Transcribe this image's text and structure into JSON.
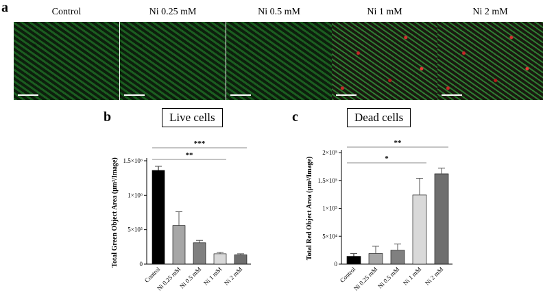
{
  "figure": {
    "panel_a": "a",
    "panel_b": "b",
    "panel_c": "c",
    "image_labels": [
      "Control",
      "Ni 0.25 mM",
      "Ni 0.5 mM",
      "Ni 1 mM",
      "Ni 2 mM"
    ]
  },
  "chart_data": [
    {
      "type": "bar",
      "title": "Live cells",
      "xlabel": "",
      "ylabel": "Total Green Object Area (μm²/Image)",
      "categories": [
        "Control",
        "Ni 0.25 mM",
        "Ni 0.5 mM",
        "Ni 1 mM",
        "Ni 2 mM"
      ],
      "values": [
        1360000,
        560000,
        310000,
        150000,
        135000
      ],
      "errors": [
        60000,
        200000,
        35000,
        20000,
        15000
      ],
      "colors": [
        "#000000",
        "#a6a6a6",
        "#808080",
        "#d9d9d9",
        "#6e6e6e"
      ],
      "ylim": [
        0,
        1500000
      ],
      "yticks": [
        0,
        500000,
        1000000,
        1500000
      ],
      "ytick_labels": [
        "0",
        "5×10⁵",
        "1×10⁶",
        "1.5×10⁶"
      ],
      "significance": [
        {
          "from": 0,
          "to": 4,
          "label": "***"
        },
        {
          "from": 0,
          "to": 3,
          "label": "**"
        }
      ],
      "grid": false
    },
    {
      "type": "bar",
      "title": "Dead cells",
      "xlabel": "",
      "ylabel": "Total Red Object Area (μm²/Image)",
      "categories": [
        "Control",
        "Ni 0.25 mM",
        "Ni 0.5 mM",
        "Ni 1 mM",
        "Ni 2 mM"
      ],
      "values": [
        14000,
        19000,
        25000,
        124000,
        162000
      ],
      "errors": [
        5000,
        13000,
        11000,
        30000,
        10000
      ],
      "colors": [
        "#000000",
        "#a6a6a6",
        "#808080",
        "#d9d9d9",
        "#6e6e6e"
      ],
      "ylim": [
        0,
        200000
      ],
      "yticks": [
        0,
        50000,
        100000,
        150000,
        200000
      ],
      "ytick_labels": [
        "0",
        "5×10⁴",
        "1×10⁵",
        "1.5×10⁵",
        "2×10⁵"
      ],
      "significance": [
        {
          "from": 0,
          "to": 4,
          "label": "**"
        },
        {
          "from": 0,
          "to": 3,
          "label": "*"
        }
      ],
      "grid": false
    }
  ]
}
